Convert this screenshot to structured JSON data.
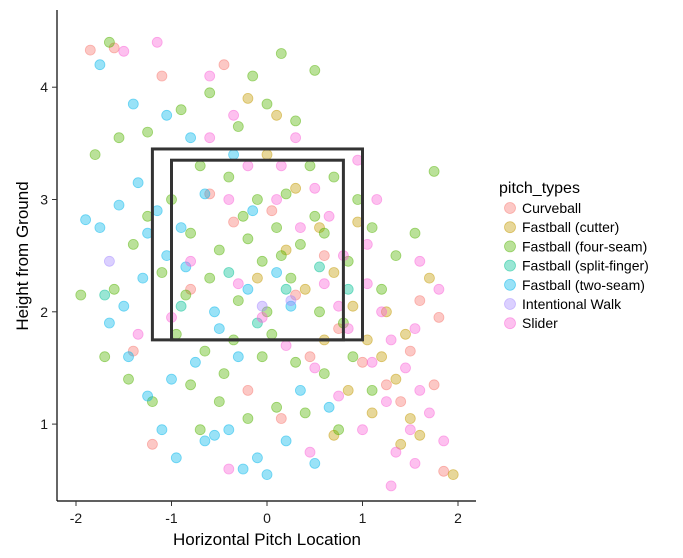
{
  "chart_data": {
    "type": "scatter",
    "title": "",
    "xlabel": "Horizontal Pitch Location",
    "ylabel": "Height from Ground",
    "xlim": [
      -2.2,
      2.2
    ],
    "ylim": [
      0.3,
      4.8
    ],
    "x_ticks": [
      "-2",
      "-1",
      "0",
      "1",
      "2"
    ],
    "y_ticks": [
      "1",
      "2",
      "3",
      "4"
    ],
    "grid": false,
    "point_alpha": 0.4,
    "legend": {
      "title": "pitch_types",
      "position": "right"
    },
    "strike_zone": {
      "outer": {
        "x": [
          -1.2,
          1.0
        ],
        "y": [
          1.75,
          3.45
        ]
      },
      "inner": {
        "x": [
          -1.0,
          0.8
        ],
        "y": [
          1.75,
          3.35
        ]
      },
      "color": "#333333"
    },
    "series": [
      {
        "name": "Curveball",
        "color": "#F8766D",
        "points": [
          [
            -1.85,
            4.33
          ],
          [
            -1.6,
            4.35
          ],
          [
            -1.1,
            4.1
          ],
          [
            -0.45,
            4.2
          ],
          [
            -0.6,
            3.05
          ],
          [
            -0.35,
            2.8
          ],
          [
            0.05,
            2.9
          ],
          [
            -0.8,
            2.2
          ],
          [
            0.3,
            2.15
          ],
          [
            0.45,
            1.6
          ],
          [
            -0.2,
            1.3
          ],
          [
            0.75,
            1.85
          ],
          [
            1.0,
            1.55
          ],
          [
            1.25,
            1.35
          ],
          [
            1.4,
            1.2
          ],
          [
            1.5,
            1.65
          ],
          [
            1.75,
            1.35
          ],
          [
            1.8,
            1.95
          ],
          [
            1.6,
            2.1
          ],
          [
            1.85,
            0.58
          ],
          [
            -1.2,
            0.82
          ],
          [
            0.15,
            1.05
          ],
          [
            -1.4,
            1.65
          ],
          [
            0.6,
            2.5
          ]
        ]
      },
      {
        "name": "Fastball (cutter)",
        "color": "#C49A00",
        "points": [
          [
            -0.2,
            3.9
          ],
          [
            0.1,
            3.75
          ],
          [
            0.3,
            3.1
          ],
          [
            0.55,
            2.75
          ],
          [
            0.7,
            2.35
          ],
          [
            0.9,
            2.05
          ],
          [
            1.05,
            1.75
          ],
          [
            1.2,
            1.6
          ],
          [
            1.35,
            1.4
          ],
          [
            1.5,
            1.05
          ],
          [
            1.6,
            0.9
          ],
          [
            1.95,
            0.55
          ],
          [
            0.2,
            2.55
          ],
          [
            0.4,
            2.2
          ],
          [
            0.85,
            1.3
          ],
          [
            1.1,
            1.1
          ],
          [
            1.4,
            0.82
          ],
          [
            0.6,
            1.75
          ],
          [
            -0.1,
            2.3
          ],
          [
            0.0,
            3.4
          ],
          [
            1.25,
            2.0
          ],
          [
            1.7,
            2.3
          ],
          [
            1.45,
            1.8
          ],
          [
            0.95,
            2.8
          ],
          [
            0.7,
            0.9
          ]
        ]
      },
      {
        "name": "Fastball (four-seam)",
        "color": "#53B400",
        "points": [
          [
            -1.65,
            4.4
          ],
          [
            -1.8,
            3.4
          ],
          [
            -1.55,
            3.55
          ],
          [
            -1.25,
            3.6
          ],
          [
            -0.9,
            3.8
          ],
          [
            -0.6,
            3.95
          ],
          [
            -0.3,
            3.65
          ],
          [
            0.0,
            3.85
          ],
          [
            0.3,
            3.7
          ],
          [
            0.5,
            4.15
          ],
          [
            0.15,
            4.3
          ],
          [
            -0.7,
            3.3
          ],
          [
            -0.4,
            3.2
          ],
          [
            -0.1,
            3.0
          ],
          [
            0.2,
            3.05
          ],
          [
            0.45,
            3.3
          ],
          [
            0.7,
            3.2
          ],
          [
            -1.0,
            3.0
          ],
          [
            -0.8,
            2.7
          ],
          [
            -0.5,
            2.55
          ],
          [
            -0.2,
            2.65
          ],
          [
            0.1,
            2.75
          ],
          [
            0.35,
            2.6
          ],
          [
            0.6,
            2.7
          ],
          [
            0.85,
            2.45
          ],
          [
            -1.1,
            2.35
          ],
          [
            -0.85,
            2.15
          ],
          [
            -0.6,
            2.3
          ],
          [
            -0.3,
            2.1
          ],
          [
            0.0,
            2.0
          ],
          [
            0.25,
            2.3
          ],
          [
            0.55,
            2.0
          ],
          [
            0.8,
            1.9
          ],
          [
            -0.95,
            1.8
          ],
          [
            -0.65,
            1.65
          ],
          [
            -0.35,
            1.75
          ],
          [
            -0.05,
            1.6
          ],
          [
            0.3,
            1.55
          ],
          [
            0.6,
            1.45
          ],
          [
            -0.8,
            1.35
          ],
          [
            -0.5,
            1.2
          ],
          [
            -0.2,
            1.05
          ],
          [
            0.1,
            1.15
          ],
          [
            0.4,
            1.1
          ],
          [
            -1.2,
            1.2
          ],
          [
            -1.45,
            1.4
          ],
          [
            -1.7,
            1.6
          ],
          [
            1.2,
            2.2
          ],
          [
            1.35,
            2.5
          ],
          [
            1.55,
            2.7
          ],
          [
            1.75,
            3.25
          ],
          [
            -1.4,
            2.6
          ],
          [
            -1.6,
            2.2
          ],
          [
            -1.25,
            2.85
          ],
          [
            -0.05,
            2.45
          ],
          [
            0.15,
            2.5
          ],
          [
            -0.25,
            2.85
          ],
          [
            0.5,
            2.85
          ],
          [
            0.05,
            1.8
          ],
          [
            -0.45,
            1.45
          ],
          [
            0.9,
            1.6
          ],
          [
            1.1,
            1.3
          ],
          [
            -0.15,
            4.1
          ],
          [
            -1.95,
            2.15
          ],
          [
            0.75,
            0.95
          ],
          [
            -0.7,
            0.95
          ],
          [
            0.95,
            3.0
          ],
          [
            1.1,
            2.75
          ]
        ]
      },
      {
        "name": "Fastball (split-finger)",
        "color": "#00C094",
        "points": [
          [
            -1.7,
            2.15
          ],
          [
            -0.9,
            2.05
          ],
          [
            -0.4,
            2.35
          ],
          [
            0.2,
            2.2
          ],
          [
            0.55,
            2.4
          ],
          [
            -0.1,
            1.9
          ],
          [
            0.85,
            2.2
          ]
        ]
      },
      {
        "name": "Fastball (two-seam)",
        "color": "#00B6EB",
        "points": [
          [
            -1.9,
            2.82
          ],
          [
            -1.75,
            2.75
          ],
          [
            -1.55,
            2.95
          ],
          [
            -1.35,
            3.15
          ],
          [
            -1.15,
            2.9
          ],
          [
            -1.05,
            2.5
          ],
          [
            -1.3,
            2.3
          ],
          [
            -1.5,
            2.05
          ],
          [
            -1.65,
            1.9
          ],
          [
            -1.45,
            1.6
          ],
          [
            -1.25,
            1.25
          ],
          [
            -1.1,
            0.95
          ],
          [
            -0.95,
            0.7
          ],
          [
            -0.65,
            0.85
          ],
          [
            -0.4,
            0.95
          ],
          [
            -0.1,
            0.7
          ],
          [
            0.2,
            0.85
          ],
          [
            0.0,
            0.55
          ],
          [
            -0.25,
            0.6
          ],
          [
            -0.75,
            1.55
          ],
          [
            -0.5,
            1.85
          ],
          [
            -0.2,
            2.2
          ],
          [
            0.1,
            2.35
          ],
          [
            -0.9,
            2.75
          ],
          [
            -0.65,
            3.05
          ],
          [
            -0.35,
            3.4
          ],
          [
            -0.8,
            3.55
          ],
          [
            -1.05,
            3.75
          ],
          [
            -1.4,
            3.85
          ],
          [
            -1.75,
            4.2
          ],
          [
            -0.55,
            2.0
          ],
          [
            -0.3,
            1.6
          ],
          [
            0.35,
            1.3
          ],
          [
            0.65,
            1.15
          ],
          [
            -1.0,
            1.4
          ],
          [
            -1.25,
            2.7
          ],
          [
            -0.15,
            2.9
          ],
          [
            0.25,
            2.05
          ],
          [
            -0.85,
            2.4
          ],
          [
            0.5,
            0.65
          ],
          [
            -0.55,
            0.9
          ]
        ]
      },
      {
        "name": "Intentional Walk",
        "color": "#A58AFF",
        "points": [
          [
            -1.65,
            2.45
          ],
          [
            -0.05,
            2.05
          ],
          [
            0.25,
            2.1
          ]
        ]
      },
      {
        "name": "Slider",
        "color": "#FB61D7",
        "points": [
          [
            -1.5,
            4.32
          ],
          [
            -1.15,
            4.4
          ],
          [
            -0.6,
            4.1
          ],
          [
            -0.35,
            3.75
          ],
          [
            -0.6,
            3.55
          ],
          [
            0.15,
            3.3
          ],
          [
            -0.4,
            3.0
          ],
          [
            0.1,
            3.0
          ],
          [
            0.5,
            3.1
          ],
          [
            0.65,
            2.85
          ],
          [
            0.8,
            2.5
          ],
          [
            1.05,
            2.25
          ],
          [
            1.2,
            2.0
          ],
          [
            1.3,
            1.75
          ],
          [
            1.45,
            1.5
          ],
          [
            1.6,
            1.3
          ],
          [
            1.7,
            1.1
          ],
          [
            1.85,
            0.85
          ],
          [
            1.55,
            0.65
          ],
          [
            1.35,
            0.75
          ],
          [
            1.0,
            0.95
          ],
          [
            0.75,
            1.25
          ],
          [
            0.5,
            1.5
          ],
          [
            0.2,
            1.7
          ],
          [
            -0.05,
            1.95
          ],
          [
            -0.3,
            2.25
          ],
          [
            0.35,
            2.75
          ],
          [
            0.6,
            2.25
          ],
          [
            0.85,
            1.85
          ],
          [
            1.1,
            1.55
          ],
          [
            1.25,
            1.2
          ],
          [
            1.5,
            0.95
          ],
          [
            1.6,
            2.45
          ],
          [
            1.8,
            2.2
          ],
          [
            -0.8,
            2.45
          ],
          [
            -1.35,
            1.8
          ],
          [
            0.45,
            0.75
          ],
          [
            -0.4,
            0.6
          ],
          [
            0.95,
            3.35
          ],
          [
            1.15,
            3.0
          ],
          [
            1.05,
            2.6
          ],
          [
            0.3,
            3.55
          ],
          [
            -1.0,
            1.95
          ],
          [
            1.3,
            0.45
          ],
          [
            1.55,
            1.85
          ],
          [
            -0.2,
            3.3
          ],
          [
            0.75,
            2.05
          ]
        ]
      }
    ]
  }
}
